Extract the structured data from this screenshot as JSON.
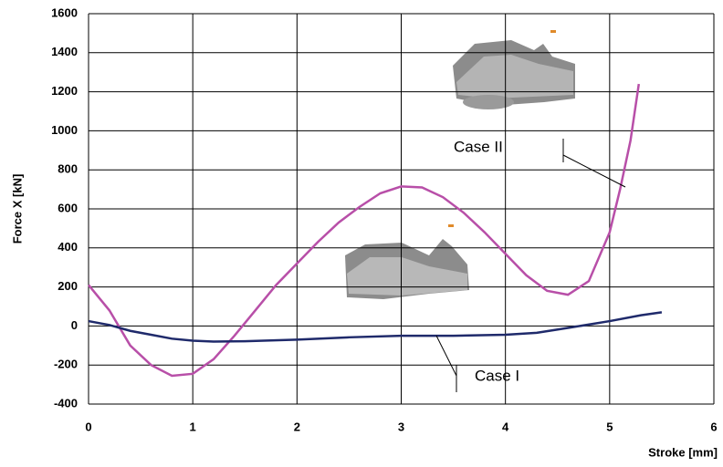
{
  "chart_data": {
    "type": "line",
    "x_label": "Stroke [mm]",
    "y_label": "Force X [kN]",
    "xlim": [
      0,
      6
    ],
    "ylim": [
      -400,
      1600
    ],
    "xticks": [
      0,
      1,
      2,
      3,
      4,
      5,
      6
    ],
    "yticks": [
      -400,
      -200,
      0,
      200,
      400,
      600,
      800,
      1000,
      1200,
      1400,
      1600
    ],
    "grid": true,
    "series": [
      {
        "name": "Case II",
        "color": "#b84fa8",
        "x": [
          0,
          0.2,
          0.4,
          0.6,
          0.8,
          1.0,
          1.2,
          1.4,
          1.6,
          1.8,
          2.0,
          2.2,
          2.4,
          2.6,
          2.8,
          3.0,
          3.2,
          3.4,
          3.6,
          3.8,
          4.0,
          4.2,
          4.4,
          4.6,
          4.8,
          5.0,
          5.1,
          5.2,
          5.28
        ],
        "values": [
          210,
          80,
          -100,
          -200,
          -255,
          -245,
          -170,
          -50,
          80,
          210,
          320,
          430,
          530,
          610,
          680,
          715,
          710,
          660,
          580,
          480,
          370,
          260,
          180,
          160,
          230,
          480,
          700,
          950,
          1240
        ]
      },
      {
        "name": "Case I",
        "color": "#1f2a6b",
        "x": [
          0,
          0.2,
          0.4,
          0.6,
          0.8,
          1.0,
          1.2,
          1.5,
          2.0,
          2.5,
          3.0,
          3.5,
          4.0,
          4.3,
          4.6,
          5.0,
          5.3,
          5.5
        ],
        "values": [
          25,
          5,
          -25,
          -45,
          -65,
          -75,
          -80,
          -78,
          -70,
          -58,
          -50,
          -50,
          -45,
          -35,
          -10,
          25,
          55,
          70
        ]
      }
    ]
  }
}
